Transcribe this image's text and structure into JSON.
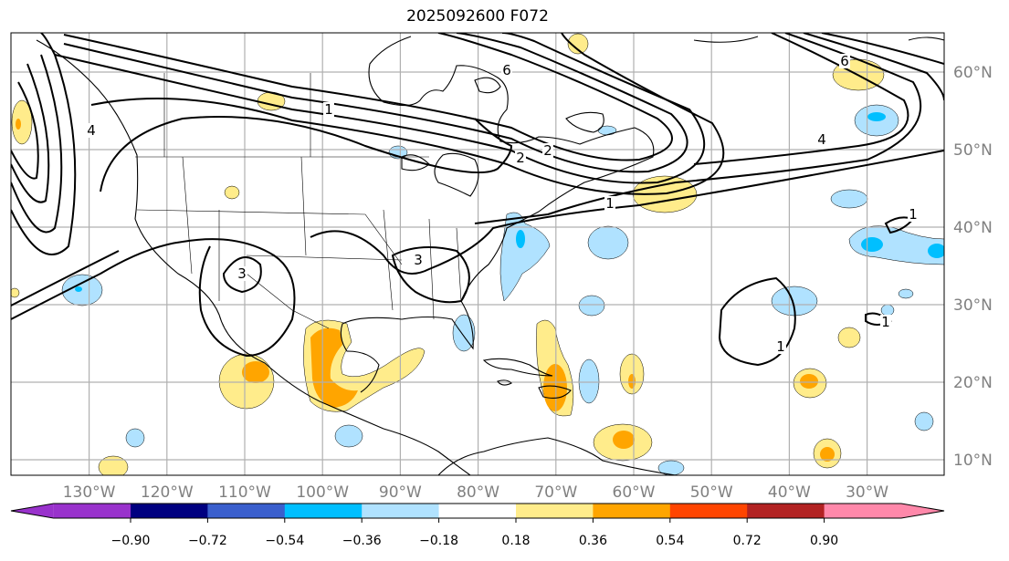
{
  "title": "2025092600 F072",
  "map": {
    "lon_labels": [
      "130°W",
      "120°W",
      "110°W",
      "100°W",
      "90°W",
      "80°W",
      "70°W",
      "60°W",
      "50°W",
      "40°W",
      "30°W"
    ],
    "lat_labels": [
      "60°N",
      "50°N",
      "40°N",
      "30°N",
      "20°N",
      "10°N"
    ],
    "contour_labels": [
      "1",
      "1",
      "1",
      "1",
      "2",
      "2",
      "3",
      "3",
      "4",
      "4",
      "6",
      "6",
      "1"
    ]
  },
  "colorbar": {
    "colors": [
      "#9932CC",
      "#000080",
      "#3A5FCD",
      "#00BFFF",
      "#B0E2FF",
      "#FFFFFF",
      "#FFEC8B",
      "#FFA500",
      "#FF4500",
      "#B22222",
      "#FF88AA"
    ],
    "tick_labels": [
      "−0.90",
      "−0.72",
      "−0.54",
      "−0.36",
      "−0.18",
      "0.18",
      "0.36",
      "0.54",
      "0.72",
      "0.90"
    ]
  }
}
